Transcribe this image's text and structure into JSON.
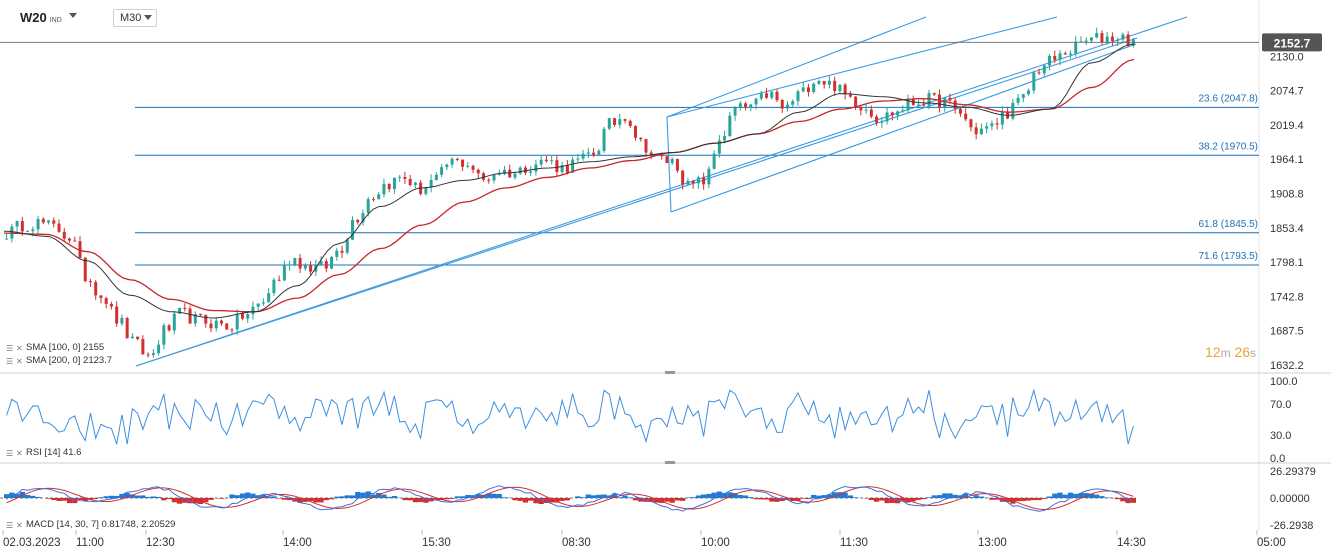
{
  "header": {
    "symbol": "W20",
    "symbol_suffix": "IND",
    "timeframe": "M30"
  },
  "current_price_label": "2152.7",
  "timer": {
    "minutes": "12",
    "m": "m",
    "seconds": "26",
    "s": "s"
  },
  "indicators": {
    "sma100": "SMA [100, 0]  2155",
    "sma200": "SMA [200, 0]  2123.7",
    "rsi": "RSI [14]  41.6",
    "macd": "MACD [14, 30, 7]  0.81748,  2.20529"
  },
  "colors": {
    "up": "#26a69a",
    "down": "#d32f2f",
    "sma100": "#333333",
    "sma200": "#c62828",
    "fib": "#1e6fb8",
    "channel": "#3d9be0",
    "rsi": "#3d8fe0",
    "macd_line": "#3d6fe0",
    "signal_line": "#d33030",
    "timer": "#e8a33a"
  },
  "chart_data": [
    {
      "type": "candlestick",
      "name": "price",
      "ylim": [
        1632.2,
        2185.5
      ],
      "y_ticks": [
        "2130.0",
        "2074.7",
        "2019.4",
        "1964.1",
        "1908.8",
        "1853.4",
        "1798.1",
        "1742.8",
        "1687.5",
        "1632.2"
      ],
      "x_ticks": [
        "02.03.2023",
        "11:00",
        "12:30",
        "14:00",
        "15:30",
        "08:30",
        "10:00",
        "11:30",
        "13:00",
        "14:30",
        "05:00"
      ],
      "fib_levels": [
        {
          "label": "23.6 (2047.8)",
          "value": 2047.8
        },
        {
          "label": "38.2 (1970.5)",
          "value": 1970.5
        },
        {
          "label": "61.8 (1845.5)",
          "value": 1845.5
        },
        {
          "label": "71.6 (1793.5)",
          "value": 1793.5
        }
      ],
      "current_price": 2152.7,
      "anchors": [
        1845,
        1858,
        1862,
        1854,
        1838,
        1775,
        1745,
        1705,
        1668,
        1645,
        1688,
        1715,
        1705,
        1700,
        1695,
        1712,
        1730,
        1770,
        1805,
        1790,
        1790,
        1820,
        1870,
        1905,
        1925,
        1935,
        1915,
        1930,
        1960,
        1958,
        1930,
        1945,
        1942,
        1955,
        1962,
        1950,
        1960,
        1975,
        2020,
        2035,
        1990,
        1965,
        1960,
        1920,
        1930,
        2000,
        2045,
        2050,
        2070,
        2045,
        2070,
        2095,
        2085,
        2065,
        2050,
        2030,
        2040,
        2055,
        2060,
        2058,
        2040,
        2010,
        2015,
        2040,
        2060,
        2110,
        2125,
        2140,
        2155,
        2160,
        2162,
        2155
      ],
      "sma100_anchors": [
        1848,
        1840,
        1800,
        1745,
        1718,
        1708,
        1718,
        1760,
        1828,
        1888,
        1918,
        1930,
        1942,
        1950,
        1960,
        1968,
        1975,
        1990,
        2005,
        2040,
        2070,
        2065,
        2055,
        2048,
        2035,
        2045,
        2120,
        2150
      ],
      "sma200_anchors": [
        1845,
        1843,
        1815,
        1770,
        1738,
        1720,
        1718,
        1740,
        1778,
        1820,
        1858,
        1895,
        1918,
        1935,
        1950,
        1962,
        1975,
        1990,
        2005,
        2025,
        2045,
        2058,
        2062,
        2052,
        2040,
        2045,
        2080,
        2125
      ]
    },
    {
      "type": "line",
      "name": "RSI [14]",
      "ylim": [
        0,
        100
      ],
      "y_ticks": [
        "100.0",
        "70.0",
        "30.0",
        "0.0"
      ],
      "last_value": 41.6
    },
    {
      "type": "histogram",
      "name": "MACD [14, 30, 7]",
      "ylim": [
        -26.29379,
        26.29379
      ],
      "y_ticks": [
        "26.29379",
        "0.00000",
        "-26.2938"
      ],
      "values": [
        0.81748,
        2.20529
      ]
    }
  ]
}
